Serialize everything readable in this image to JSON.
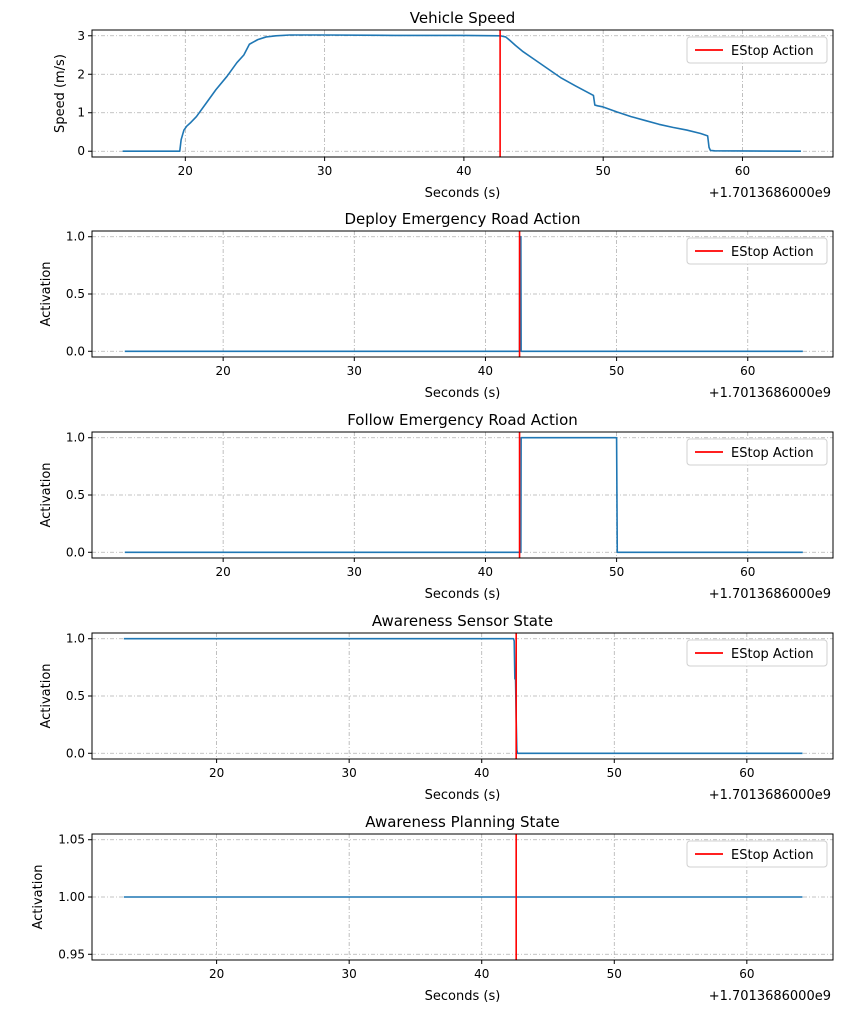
{
  "colors": {
    "series": "#1f77b4",
    "estop": "#ff0000",
    "grid": "#b0b0b0",
    "axis": "#000000"
  },
  "chart_data": [
    {
      "type": "line",
      "title": "Vehicle Speed",
      "xlabel": "Seconds (s)",
      "ylabel": "Speed (m/s)",
      "x_offset_label": "+1.7013686000e9",
      "xlim": [
        13.3,
        66.5
      ],
      "ylim": [
        -0.15,
        3.15
      ],
      "xticks": [
        20,
        30,
        40,
        50,
        60
      ],
      "yticks": [
        0,
        1,
        2,
        3
      ],
      "ytick_labels": [
        "0",
        "1",
        "2",
        "3"
      ],
      "grid": true,
      "legend": {
        "position": "top-right",
        "entries": [
          "EStop Action"
        ]
      },
      "estop_x": 42.6,
      "series": [
        {
          "name": "speed",
          "x": [
            15.5,
            19.6,
            19.7,
            19.9,
            20.1,
            20.4,
            20.8,
            21.5,
            22.2,
            23.0,
            23.7,
            24.2,
            24.6,
            25.2,
            25.8,
            26.5,
            27.5,
            30,
            35,
            40,
            42.6,
            43.0,
            43.3,
            43.7,
            44.2,
            45.0,
            46.0,
            47.0,
            48.0,
            49.3,
            49.4,
            49.6,
            50.0,
            51.0,
            52.0,
            53.0,
            54.0,
            55.0,
            56.0,
            57.0,
            57.5,
            57.6,
            57.7,
            58.0,
            64.2
          ],
          "values": [
            0,
            0,
            0.3,
            0.55,
            0.65,
            0.75,
            0.9,
            1.25,
            1.6,
            1.95,
            2.3,
            2.5,
            2.78,
            2.9,
            2.97,
            3.0,
            3.02,
            3.02,
            3.01,
            3.01,
            3.0,
            2.97,
            2.88,
            2.75,
            2.6,
            2.4,
            2.15,
            1.9,
            1.7,
            1.45,
            1.2,
            1.18,
            1.15,
            1.02,
            0.9,
            0.8,
            0.7,
            0.62,
            0.55,
            0.46,
            0.4,
            0.1,
            0.02,
            0.01,
            0.0
          ]
        }
      ]
    },
    {
      "type": "line",
      "title": "Deploy Emergency Road Action",
      "xlabel": "Seconds (s)",
      "ylabel": "Activation",
      "x_offset_label": "+1.7013686000e9",
      "xlim": [
        10.0,
        66.5
      ],
      "ylim": [
        -0.05,
        1.05
      ],
      "xticks": [
        20,
        30,
        40,
        50,
        60
      ],
      "yticks": [
        0,
        0.5,
        1
      ],
      "ytick_labels": [
        "0.0",
        "0.5",
        "1.0"
      ],
      "grid": true,
      "legend": {
        "position": "top-right",
        "entries": [
          "EStop Action"
        ]
      },
      "estop_x": 42.6,
      "series": [
        {
          "name": "deploy",
          "x": [
            12.5,
            42.6,
            42.62,
            42.7,
            42.72,
            64.2
          ],
          "values": [
            0,
            0,
            1,
            1,
            0,
            0
          ]
        }
      ]
    },
    {
      "type": "line",
      "title": "Follow Emergency Road Action",
      "xlabel": "Seconds (s)",
      "ylabel": "Activation",
      "x_offset_label": "+1.7013686000e9",
      "xlim": [
        10.0,
        66.5
      ],
      "ylim": [
        -0.05,
        1.05
      ],
      "xticks": [
        20,
        30,
        40,
        50,
        60
      ],
      "yticks": [
        0,
        0.5,
        1
      ],
      "ytick_labels": [
        "0.0",
        "0.5",
        "1.0"
      ],
      "grid": true,
      "legend": {
        "position": "top-right",
        "entries": [
          "EStop Action"
        ]
      },
      "estop_x": 42.6,
      "series": [
        {
          "name": "follow",
          "x": [
            12.5,
            42.7,
            42.72,
            50.0,
            50.05,
            64.2
          ],
          "values": [
            0,
            0,
            1,
            1,
            0,
            0
          ]
        }
      ]
    },
    {
      "type": "line",
      "title": "Awareness Sensor State",
      "xlabel": "Seconds (s)",
      "ylabel": "Activation",
      "x_offset_label": "+1.7013686000e9",
      "xlim": [
        10.6,
        66.5
      ],
      "ylim": [
        -0.05,
        1.05
      ],
      "xticks": [
        20,
        30,
        40,
        50,
        60
      ],
      "yticks": [
        0,
        0.5,
        1
      ],
      "ytick_labels": [
        "0.0",
        "0.5",
        "1.0"
      ],
      "grid": true,
      "legend": {
        "position": "top-right",
        "entries": [
          "EStop Action"
        ]
      },
      "estop_x": 42.6,
      "series": [
        {
          "name": "sensor",
          "x": [
            13.0,
            42.4,
            42.45,
            42.5,
            42.55,
            42.6,
            42.65,
            42.7,
            64.2
          ],
          "values": [
            1,
            1,
            0.98,
            0.65,
            0.65,
            0.3,
            0.03,
            0,
            0
          ]
        }
      ]
    },
    {
      "type": "line",
      "title": "Awareness Planning State",
      "xlabel": "Seconds (s)",
      "ylabel": "Activation",
      "x_offset_label": "+1.7013686000e9",
      "xlim": [
        10.6,
        66.5
      ],
      "ylim": [
        0.945,
        1.055
      ],
      "xticks": [
        20,
        30,
        40,
        50,
        60
      ],
      "yticks": [
        0.95,
        1.0,
        1.05
      ],
      "ytick_labels": [
        "0.95",
        "1.00",
        "1.05"
      ],
      "grid": true,
      "legend": {
        "position": "top-right",
        "entries": [
          "EStop Action"
        ]
      },
      "estop_x": 42.6,
      "series": [
        {
          "name": "planning",
          "x": [
            13.0,
            64.2
          ],
          "values": [
            1,
            1
          ]
        }
      ]
    }
  ]
}
